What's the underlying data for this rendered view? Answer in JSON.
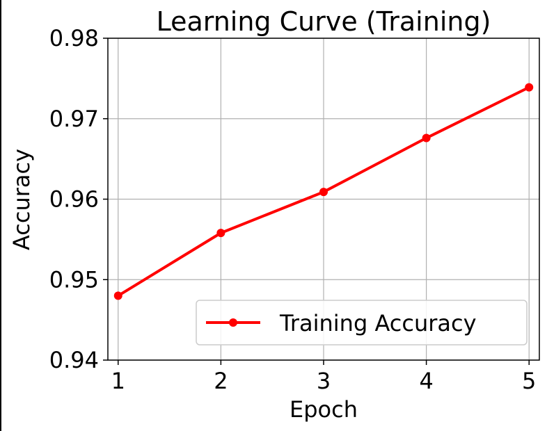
{
  "chart_data": {
    "type": "line",
    "title": "Learning Curve (Training)",
    "xlabel": "Epoch",
    "ylabel": "Accuracy",
    "x": [
      1,
      2,
      3,
      4,
      5
    ],
    "xticks": [
      "1",
      "2",
      "3",
      "4",
      "5"
    ],
    "xlim": [
      0.9,
      5.1
    ],
    "ylim": [
      0.94,
      0.98
    ],
    "yticks": [
      "0.94",
      "0.95",
      "0.96",
      "0.97",
      "0.98"
    ],
    "grid": true,
    "legend_position": "lower-right",
    "series": [
      {
        "name": "Training Accuracy",
        "values": [
          0.948,
          0.9558,
          0.9609,
          0.9676,
          0.9739
        ],
        "color": "#ff0000",
        "marker": "circle"
      }
    ]
  }
}
